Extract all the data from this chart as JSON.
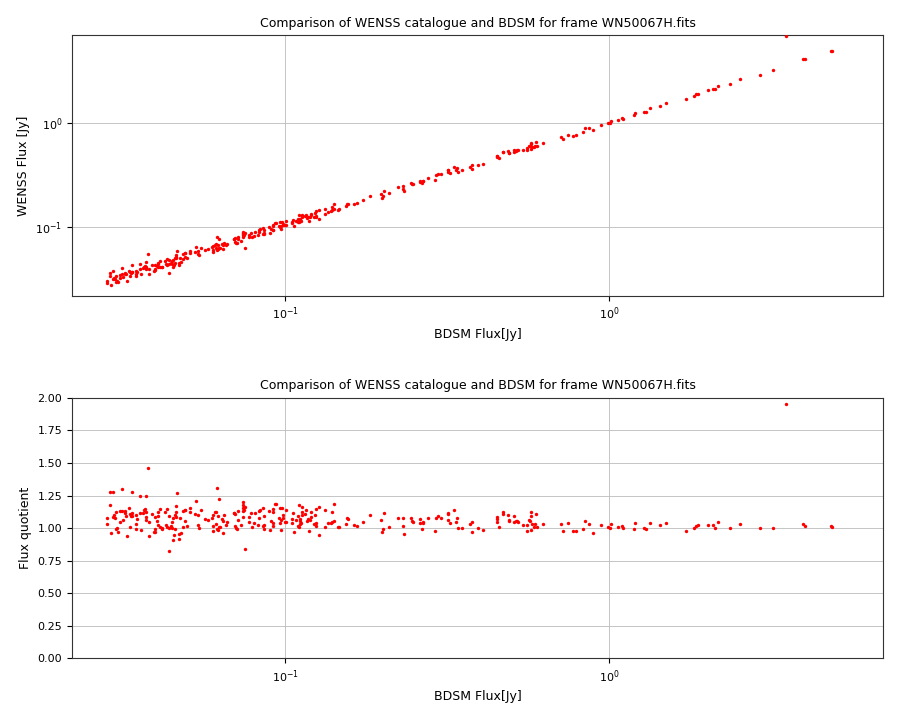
{
  "title": "Comparison of WENSS catalogue and BDSM for frame WN50067H.fits",
  "xlabel1": "BDSM Flux[Jy]",
  "ylabel1": "WENSS Flux [Jy]",
  "xlabel2": "BDSM Flux[Jy]",
  "ylabel2": "Flux quotient",
  "dot_color": "#ff0000",
  "dot_size": 6,
  "bg_color": "#ffffff",
  "grid_color": "#bbbbbb",
  "ylim2": [
    0.0,
    2.0
  ],
  "yticks2": [
    0.0,
    0.25,
    0.5,
    0.75,
    1.0,
    1.25,
    1.5,
    1.75,
    2.0
  ],
  "seed": 42
}
